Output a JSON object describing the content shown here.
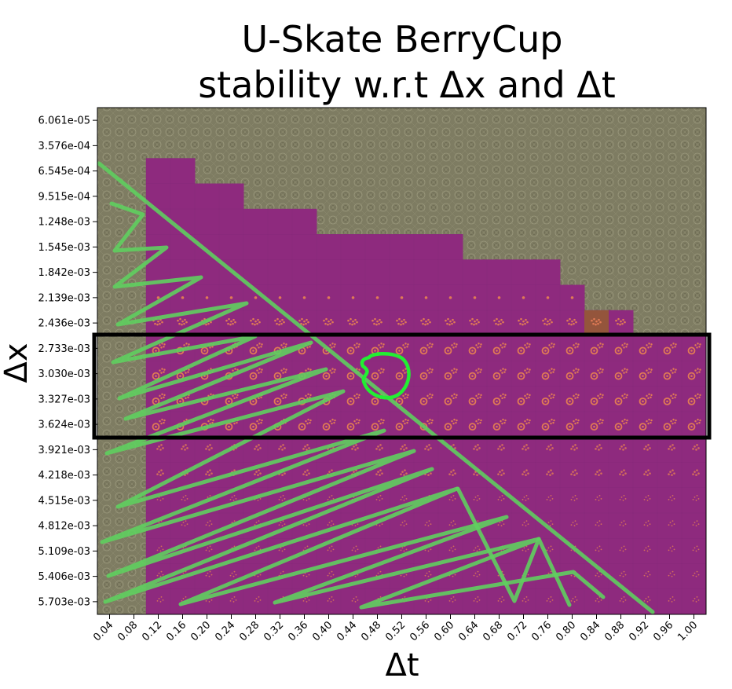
{
  "title_lines": [
    "U-Skate BerryCup",
    "stability w.r.t Δx and Δt"
  ],
  "chart_data": {
    "type": "heatmap",
    "title": "U-Skate BerryCup stability w.r.t Δx and Δt",
    "xlabel": "Δt",
    "ylabel": "Δx",
    "x_ticks": [
      "0.04",
      "0.08",
      "0.12",
      "0.16",
      "0.20",
      "0.24",
      "0.28",
      "0.32",
      "0.36",
      "0.40",
      "0.44",
      "0.48",
      "0.52",
      "0.56",
      "0.60",
      "0.64",
      "0.68",
      "0.72",
      "0.76",
      "0.80",
      "0.84",
      "0.88",
      "0.92",
      "0.96",
      "1.00"
    ],
    "y_ticks": [
      "6.061e-05",
      "3.576e-04",
      "6.545e-04",
      "9.515e-04",
      "1.248e-03",
      "1.545e-03",
      "1.842e-03",
      "2.139e-03",
      "2.436e-03",
      "2.733e-03",
      "3.030e-03",
      "3.327e-03",
      "3.624e-03",
      "3.921e-03",
      "4.218e-03",
      "4.515e-03",
      "4.812e-03",
      "5.109e-03",
      "5.406e-03",
      "5.703e-03"
    ],
    "stable_from_row": [
      20,
      20,
      2,
      2,
      3,
      3,
      4,
      4,
      4,
      5,
      5,
      5,
      5,
      5,
      5,
      6,
      6,
      6,
      6,
      7,
      8,
      8,
      9,
      9,
      9
    ],
    "highlighted_rows": [
      "2.733e-03",
      "3.624e-03"
    ],
    "grid": false,
    "colors": {
      "unstable": "#7e7c62",
      "stable": "#8e2a7e",
      "transition_cell": "#94553c",
      "marker": "#e07a55",
      "annotation": "#5fcf5f",
      "circle": "#22ee33",
      "highlight_box": "#000000"
    }
  }
}
